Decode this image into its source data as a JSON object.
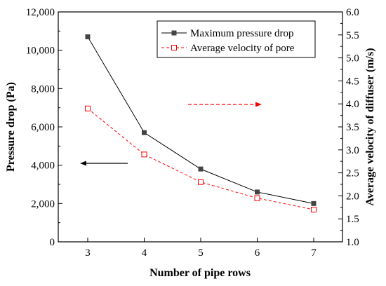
{
  "chart_data": {
    "type": "line",
    "categories": [
      "3",
      "4",
      "5",
      "6",
      "7"
    ],
    "x": [
      3,
      4,
      5,
      6,
      7
    ],
    "xlabel": "Number of pipe rows",
    "ylabel": "Pressure drop (Pa)",
    "y2label": "Average velocity of diffuser (m/s)",
    "ylim": [
      0,
      12000
    ],
    "y2lim": [
      1.0,
      6.0
    ],
    "xticks": [
      "3",
      "4",
      "5",
      "6",
      "7"
    ],
    "yticks": [
      "0",
      "2,000",
      "4,000",
      "6,000",
      "8,000",
      "10,000",
      "12,000"
    ],
    "y2ticks": [
      "1.0",
      "1.5",
      "2.0",
      "2.5",
      "3.0",
      "3.5",
      "4.0",
      "4.5",
      "5.0",
      "5.5",
      "6.0"
    ],
    "legend_position": "top-right",
    "grid": false,
    "series": [
      {
        "name": "Maximum pressure drop",
        "axis": "left",
        "values": [
          10700,
          5700,
          3800,
          2600,
          2000
        ],
        "color": "#000000",
        "marker": "filled-square",
        "line": "solid",
        "marker_color": "#444444"
      },
      {
        "name": "Average velocity of pore",
        "axis": "right",
        "values": [
          3.9,
          2.9,
          2.3,
          1.95,
          1.7
        ],
        "color": "#ff0000",
        "marker": "open-square",
        "line": "dashed"
      }
    ],
    "annotations": [
      {
        "name": "left-axis-arrow",
        "direction": "left",
        "color": "#000000"
      },
      {
        "name": "right-axis-arrow",
        "direction": "right",
        "color": "#ff0000"
      }
    ]
  }
}
